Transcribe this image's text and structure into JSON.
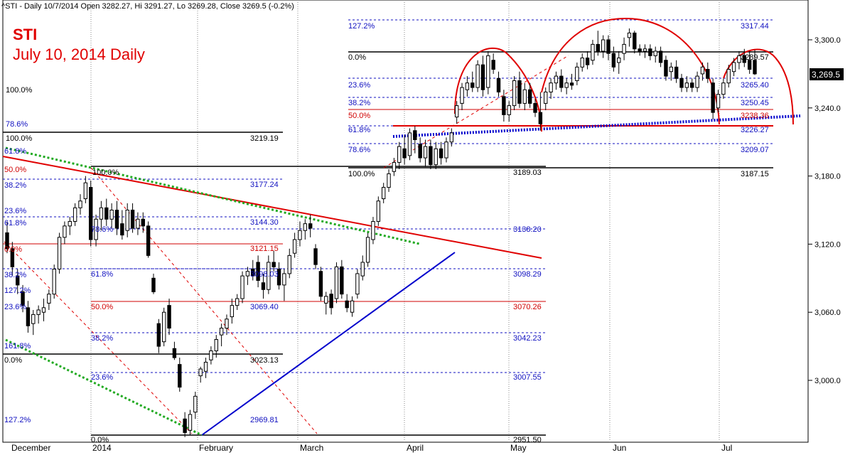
{
  "header": {
    "text": "^STI - Daily 10/7/2014 Open 3282.27, Hi 3291.27, Lo 3269.28, Close 3269.5 (-0.2%)"
  },
  "annotation": {
    "title": "STI",
    "subtitle": "July 10, 2014 Daily"
  },
  "colors": {
    "fib_level": "#1010c0",
    "fib_50": "#d00000",
    "trend_red": "#e00000",
    "trend_blue": "#0000cc",
    "trend_green": "#22aa22",
    "cup_arc": "#e00000",
    "price_tag_bg": "#000000"
  },
  "chart_data": {
    "type": "candlestick",
    "title": "^STI - Daily",
    "ylim": [
      2945,
      3330
    ],
    "y_ticks": [
      {
        "label": "3,300.0",
        "value": 3300
      },
      {
        "label": "3,240.0",
        "value": 3240
      },
      {
        "label": "3,180.0",
        "value": 3180
      },
      {
        "label": "3,120.0",
        "value": 3120
      },
      {
        "label": "3,060.0",
        "value": 3060
      },
      {
        "label": "3,000.0",
        "value": 3000
      }
    ],
    "x_ticks": [
      "December",
      "2014",
      "February",
      "March",
      "April",
      "May",
      "Jun",
      "Jul"
    ],
    "last_price": "3,269.5",
    "price_labels": [
      "3317.44",
      "3289.57",
      "3265.40",
      "3250.45",
      "3238.36",
      "3226.27",
      "3209.07",
      "3189.03",
      "3187.15",
      "3219.19",
      "3177.24",
      "3144.30",
      "3138.20",
      "3121.15",
      "3098.29",
      "3098.03",
      "3070.26",
      "3069.40",
      "3042.23",
      "3023.13",
      "3007.55",
      "2969.81",
      "2951.50"
    ],
    "fib_labels": [
      "127.2%",
      "0.0%",
      "23.6%",
      "38.2%",
      "50.0%",
      "61.8%",
      "78.6%",
      "100.0%",
      "161.8%"
    ],
    "candles": [
      {
        "o": 3130,
        "h": 3140,
        "l": 3112,
        "c": 3116
      },
      {
        "o": 3116,
        "h": 3122,
        "l": 3092,
        "c": 3100
      },
      {
        "o": 3092,
        "h": 3098,
        "l": 3076,
        "c": 3084
      },
      {
        "o": 3078,
        "h": 3084,
        "l": 3060,
        "c": 3066
      },
      {
        "o": 3064,
        "h": 3070,
        "l": 3042,
        "c": 3048
      },
      {
        "o": 3050,
        "h": 3062,
        "l": 3040,
        "c": 3058
      },
      {
        "o": 3058,
        "h": 3066,
        "l": 3050,
        "c": 3062
      },
      {
        "o": 3060,
        "h": 3072,
        "l": 3052,
        "c": 3064
      },
      {
        "o": 3068,
        "h": 3080,
        "l": 3062,
        "c": 3076
      },
      {
        "o": 3076,
        "h": 3102,
        "l": 3072,
        "c": 3098
      },
      {
        "o": 3098,
        "h": 3130,
        "l": 3094,
        "c": 3126
      },
      {
        "o": 3126,
        "h": 3140,
        "l": 3120,
        "c": 3136
      },
      {
        "o": 3136,
        "h": 3144,
        "l": 3128,
        "c": 3140
      },
      {
        "o": 3140,
        "h": 3156,
        "l": 3136,
        "c": 3152
      },
      {
        "o": 3152,
        "h": 3164,
        "l": 3146,
        "c": 3158
      },
      {
        "o": 3160,
        "h": 3180,
        "l": 3156,
        "c": 3174
      },
      {
        "o": 3170,
        "h": 3176,
        "l": 3118,
        "c": 3124
      },
      {
        "o": 3124,
        "h": 3146,
        "l": 3118,
        "c": 3142
      },
      {
        "o": 3142,
        "h": 3158,
        "l": 3132,
        "c": 3152
      },
      {
        "o": 3152,
        "h": 3160,
        "l": 3136,
        "c": 3142
      },
      {
        "o": 3142,
        "h": 3156,
        "l": 3134,
        "c": 3150
      },
      {
        "o": 3150,
        "h": 3158,
        "l": 3128,
        "c": 3134
      },
      {
        "o": 3138,
        "h": 3150,
        "l": 3124,
        "c": 3128
      },
      {
        "o": 3132,
        "h": 3156,
        "l": 3126,
        "c": 3150
      },
      {
        "o": 3150,
        "h": 3156,
        "l": 3130,
        "c": 3134
      },
      {
        "o": 3134,
        "h": 3148,
        "l": 3128,
        "c": 3142
      },
      {
        "o": 3142,
        "h": 3148,
        "l": 3130,
        "c": 3136
      },
      {
        "o": 3136,
        "h": 3140,
        "l": 3108,
        "c": 3110
      },
      {
        "o": 3090,
        "h": 3094,
        "l": 3076,
        "c": 3078
      },
      {
        "o": 3050,
        "h": 3054,
        "l": 3024,
        "c": 3030
      },
      {
        "o": 3034,
        "h": 3064,
        "l": 3030,
        "c": 3060
      },
      {
        "o": 3066,
        "h": 3072,
        "l": 3040,
        "c": 3046
      },
      {
        "o": 3028,
        "h": 3034,
        "l": 3018,
        "c": 3020
      },
      {
        "o": 3014,
        "h": 3020,
        "l": 2990,
        "c": 2994
      },
      {
        "o": 2966,
        "h": 2972,
        "l": 2950,
        "c": 2954
      },
      {
        "o": 2956,
        "h": 2974,
        "l": 2952,
        "c": 2970
      },
      {
        "o": 2972,
        "h": 2990,
        "l": 2966,
        "c": 2986
      },
      {
        "o": 3004,
        "h": 3012,
        "l": 2998,
        "c": 3010
      },
      {
        "o": 3008,
        "h": 3020,
        "l": 3002,
        "c": 3016
      },
      {
        "o": 3018,
        "h": 3030,
        "l": 3014,
        "c": 3026
      },
      {
        "o": 3026,
        "h": 3040,
        "l": 3020,
        "c": 3036
      },
      {
        "o": 3040,
        "h": 3050,
        "l": 3030,
        "c": 3046
      },
      {
        "o": 3046,
        "h": 3058,
        "l": 3040,
        "c": 3054
      },
      {
        "o": 3056,
        "h": 3072,
        "l": 3050,
        "c": 3066
      },
      {
        "o": 3066,
        "h": 3076,
        "l": 3062,
        "c": 3072
      },
      {
        "o": 3072,
        "h": 3096,
        "l": 3068,
        "c": 3092
      },
      {
        "o": 3092,
        "h": 3100,
        "l": 3084,
        "c": 3096
      },
      {
        "o": 3098,
        "h": 3106,
        "l": 3088,
        "c": 3092
      },
      {
        "o": 3104,
        "h": 3110,
        "l": 3082,
        "c": 3088
      },
      {
        "o": 3086,
        "h": 3094,
        "l": 3072,
        "c": 3080
      },
      {
        "o": 3080,
        "h": 3110,
        "l": 3076,
        "c": 3104
      },
      {
        "o": 3104,
        "h": 3114,
        "l": 3096,
        "c": 3100
      },
      {
        "o": 3098,
        "h": 3104,
        "l": 3080,
        "c": 3084
      },
      {
        "o": 3084,
        "h": 3098,
        "l": 3070,
        "c": 3094
      },
      {
        "o": 3094,
        "h": 3116,
        "l": 3090,
        "c": 3110
      },
      {
        "o": 3112,
        "h": 3130,
        "l": 3108,
        "c": 3124
      },
      {
        "o": 3124,
        "h": 3140,
        "l": 3118,
        "c": 3132
      },
      {
        "o": 3132,
        "h": 3142,
        "l": 3124,
        "c": 3138
      },
      {
        "o": 3138,
        "h": 3146,
        "l": 3126,
        "c": 3134
      },
      {
        "o": 3116,
        "h": 3120,
        "l": 3098,
        "c": 3102
      },
      {
        "o": 3096,
        "h": 3100,
        "l": 3070,
        "c": 3074
      },
      {
        "o": 3068,
        "h": 3078,
        "l": 3058,
        "c": 3074
      },
      {
        "o": 3076,
        "h": 3080,
        "l": 3058,
        "c": 3064
      },
      {
        "o": 3072,
        "h": 3104,
        "l": 3068,
        "c": 3100
      },
      {
        "o": 3100,
        "h": 3106,
        "l": 3072,
        "c": 3076
      },
      {
        "o": 3070,
        "h": 3076,
        "l": 3060,
        "c": 3064
      },
      {
        "o": 3060,
        "h": 3074,
        "l": 3056,
        "c": 3070
      },
      {
        "o": 3076,
        "h": 3098,
        "l": 3072,
        "c": 3094
      },
      {
        "o": 3092,
        "h": 3110,
        "l": 3088,
        "c": 3104
      },
      {
        "o": 3104,
        "h": 3130,
        "l": 3100,
        "c": 3126
      },
      {
        "o": 3124,
        "h": 3144,
        "l": 3120,
        "c": 3140
      },
      {
        "o": 3140,
        "h": 3162,
        "l": 3136,
        "c": 3158
      },
      {
        "o": 3160,
        "h": 3174,
        "l": 3156,
        "c": 3170
      },
      {
        "o": 3170,
        "h": 3186,
        "l": 3166,
        "c": 3182
      },
      {
        "o": 3184,
        "h": 3196,
        "l": 3180,
        "c": 3192
      },
      {
        "o": 3192,
        "h": 3210,
        "l": 3186,
        "c": 3206
      },
      {
        "o": 3204,
        "h": 3216,
        "l": 3190,
        "c": 3196
      },
      {
        "o": 3198,
        "h": 3222,
        "l": 3194,
        "c": 3218
      },
      {
        "o": 3220,
        "h": 3224,
        "l": 3200,
        "c": 3212
      },
      {
        "o": 3208,
        "h": 3214,
        "l": 3192,
        "c": 3196
      },
      {
        "o": 3196,
        "h": 3212,
        "l": 3188,
        "c": 3206
      },
      {
        "o": 3206,
        "h": 3212,
        "l": 3186,
        "c": 3190
      },
      {
        "o": 3190,
        "h": 3210,
        "l": 3186,
        "c": 3204
      },
      {
        "o": 3204,
        "h": 3210,
        "l": 3190,
        "c": 3196
      },
      {
        "o": 3196,
        "h": 3214,
        "l": 3192,
        "c": 3210
      },
      {
        "o": 3210,
        "h": 3222,
        "l": 3206,
        "c": 3218
      },
      {
        "o": 3232,
        "h": 3246,
        "l": 3226,
        "c": 3242
      },
      {
        "o": 3244,
        "h": 3262,
        "l": 3238,
        "c": 3258
      },
      {
        "o": 3256,
        "h": 3268,
        "l": 3250,
        "c": 3262
      },
      {
        "o": 3262,
        "h": 3272,
        "l": 3254,
        "c": 3258
      },
      {
        "o": 3258,
        "h": 3282,
        "l": 3254,
        "c": 3278
      },
      {
        "o": 3278,
        "h": 3286,
        "l": 3250,
        "c": 3256
      },
      {
        "o": 3258,
        "h": 3290,
        "l": 3252,
        "c": 3286
      },
      {
        "o": 3282,
        "h": 3288,
        "l": 3270,
        "c": 3274
      },
      {
        "o": 3266,
        "h": 3272,
        "l": 3250,
        "c": 3254
      },
      {
        "o": 3250,
        "h": 3256,
        "l": 3228,
        "c": 3234
      },
      {
        "o": 3234,
        "h": 3246,
        "l": 3228,
        "c": 3242
      },
      {
        "o": 3242,
        "h": 3268,
        "l": 3238,
        "c": 3264
      },
      {
        "o": 3264,
        "h": 3272,
        "l": 3240,
        "c": 3244
      },
      {
        "o": 3244,
        "h": 3262,
        "l": 3238,
        "c": 3256
      },
      {
        "o": 3256,
        "h": 3262,
        "l": 3240,
        "c": 3244
      },
      {
        "o": 3244,
        "h": 3248,
        "l": 3232,
        "c": 3236
      },
      {
        "o": 3236,
        "h": 3254,
        "l": 3220,
        "c": 3226
      },
      {
        "o": 3244,
        "h": 3258,
        "l": 3238,
        "c": 3254
      },
      {
        "o": 3254,
        "h": 3266,
        "l": 3248,
        "c": 3262
      },
      {
        "o": 3262,
        "h": 3272,
        "l": 3256,
        "c": 3268
      },
      {
        "o": 3268,
        "h": 3274,
        "l": 3254,
        "c": 3258
      },
      {
        "o": 3258,
        "h": 3266,
        "l": 3252,
        "c": 3262
      },
      {
        "o": 3262,
        "h": 3270,
        "l": 3256,
        "c": 3260
      },
      {
        "o": 3264,
        "h": 3280,
        "l": 3260,
        "c": 3276
      },
      {
        "o": 3276,
        "h": 3288,
        "l": 3272,
        "c": 3284
      },
      {
        "o": 3284,
        "h": 3290,
        "l": 3274,
        "c": 3278
      },
      {
        "o": 3282,
        "h": 3300,
        "l": 3278,
        "c": 3296
      },
      {
        "o": 3296,
        "h": 3308,
        "l": 3286,
        "c": 3290
      },
      {
        "o": 3290,
        "h": 3304,
        "l": 3284,
        "c": 3300
      },
      {
        "o": 3300,
        "h": 3304,
        "l": 3282,
        "c": 3288
      },
      {
        "o": 3288,
        "h": 3294,
        "l": 3272,
        "c": 3276
      },
      {
        "o": 3280,
        "h": 3290,
        "l": 3270,
        "c": 3284
      },
      {
        "o": 3288,
        "h": 3302,
        "l": 3282,
        "c": 3296
      },
      {
        "o": 3302,
        "h": 3310,
        "l": 3294,
        "c": 3306
      },
      {
        "o": 3306,
        "h": 3308,
        "l": 3288,
        "c": 3292
      },
      {
        "o": 3292,
        "h": 3296,
        "l": 3286,
        "c": 3290
      },
      {
        "o": 3290,
        "h": 3296,
        "l": 3284,
        "c": 3292
      },
      {
        "o": 3292,
        "h": 3296,
        "l": 3282,
        "c": 3286
      },
      {
        "o": 3286,
        "h": 3294,
        "l": 3280,
        "c": 3290
      },
      {
        "o": 3290,
        "h": 3294,
        "l": 3276,
        "c": 3280
      },
      {
        "o": 3282,
        "h": 3286,
        "l": 3264,
        "c": 3268
      },
      {
        "o": 3272,
        "h": 3280,
        "l": 3264,
        "c": 3276
      },
      {
        "o": 3276,
        "h": 3282,
        "l": 3262,
        "c": 3266
      },
      {
        "o": 3266,
        "h": 3270,
        "l": 3254,
        "c": 3258
      },
      {
        "o": 3258,
        "h": 3268,
        "l": 3254,
        "c": 3262
      },
      {
        "o": 3262,
        "h": 3266,
        "l": 3254,
        "c": 3258
      },
      {
        "o": 3258,
        "h": 3272,
        "l": 3254,
        "c": 3268
      },
      {
        "o": 3270,
        "h": 3280,
        "l": 3264,
        "c": 3276
      },
      {
        "o": 3274,
        "h": 3280,
        "l": 3262,
        "c": 3266
      },
      {
        "o": 3262,
        "h": 3266,
        "l": 3230,
        "c": 3236
      },
      {
        "o": 3240,
        "h": 3256,
        "l": 3236,
        "c": 3252
      },
      {
        "o": 3252,
        "h": 3266,
        "l": 3248,
        "c": 3262
      },
      {
        "o": 3262,
        "h": 3278,
        "l": 3258,
        "c": 3274
      },
      {
        "o": 3272,
        "h": 3284,
        "l": 3268,
        "c": 3280
      },
      {
        "o": 3280,
        "h": 3290,
        "l": 3274,
        "c": 3286
      },
      {
        "o": 3286,
        "h": 3292,
        "l": 3276,
        "c": 3280
      },
      {
        "o": 3282,
        "h": 3290,
        "l": 3270,
        "c": 3274
      },
      {
        "o": 3282,
        "h": 3291,
        "l": 3269,
        "c": 3270
      }
    ]
  }
}
